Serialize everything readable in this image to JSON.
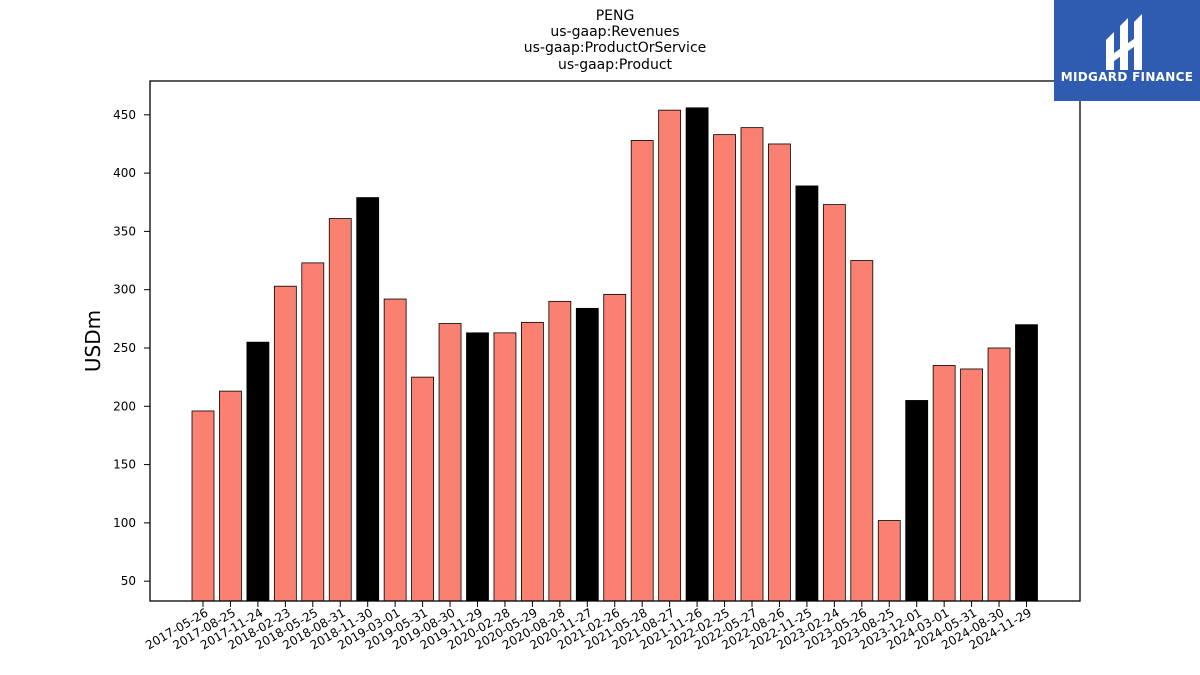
{
  "brand": {
    "logo_text": "MIDGARD FINANCE",
    "logo_bg": "#2f5bb0"
  },
  "chart_data": {
    "type": "bar",
    "title_lines": [
      "PENG",
      "us-gaap:Revenues",
      "us-gaap:ProductOrService",
      "us-gaap:Product"
    ],
    "xlabel": "",
    "ylabel": "USDm",
    "ylim": [
      33,
      479
    ],
    "yticks": [
      50,
      100,
      150,
      200,
      250,
      300,
      350,
      400,
      450
    ],
    "grid": false,
    "colors": {
      "quarter": "#fa8072",
      "fiscal_q4": "#000000"
    },
    "categories": [
      "2017-05-26",
      "2017-08-25",
      "2017-11-24",
      "2018-02-23",
      "2018-05-25",
      "2018-08-31",
      "2018-11-30",
      "2019-03-01",
      "2019-05-31",
      "2019-08-30",
      "2019-11-29",
      "2020-02-28",
      "2020-05-29",
      "2020-08-28",
      "2020-11-27",
      "2021-02-26",
      "2021-05-28",
      "2021-08-27",
      "2021-11-26",
      "2022-02-25",
      "2022-05-27",
      "2022-08-26",
      "2022-11-25",
      "2023-02-24",
      "2023-05-26",
      "2023-08-25",
      "2023-12-01",
      "2024-03-01",
      "2024-05-31",
      "2024-08-30",
      "2024-11-29"
    ],
    "values": [
      196,
      213,
      255,
      303,
      323,
      361,
      379,
      292,
      225,
      271,
      263,
      263,
      272,
      290,
      284,
      296,
      428,
      454,
      456,
      433,
      439,
      425,
      389,
      373,
      325,
      102,
      205,
      235,
      232,
      250,
      270
    ],
    "highlight": [
      false,
      false,
      true,
      false,
      false,
      false,
      true,
      false,
      false,
      false,
      true,
      false,
      false,
      false,
      true,
      false,
      false,
      false,
      true,
      false,
      false,
      false,
      true,
      false,
      false,
      false,
      true,
      false,
      false,
      false,
      true
    ]
  }
}
